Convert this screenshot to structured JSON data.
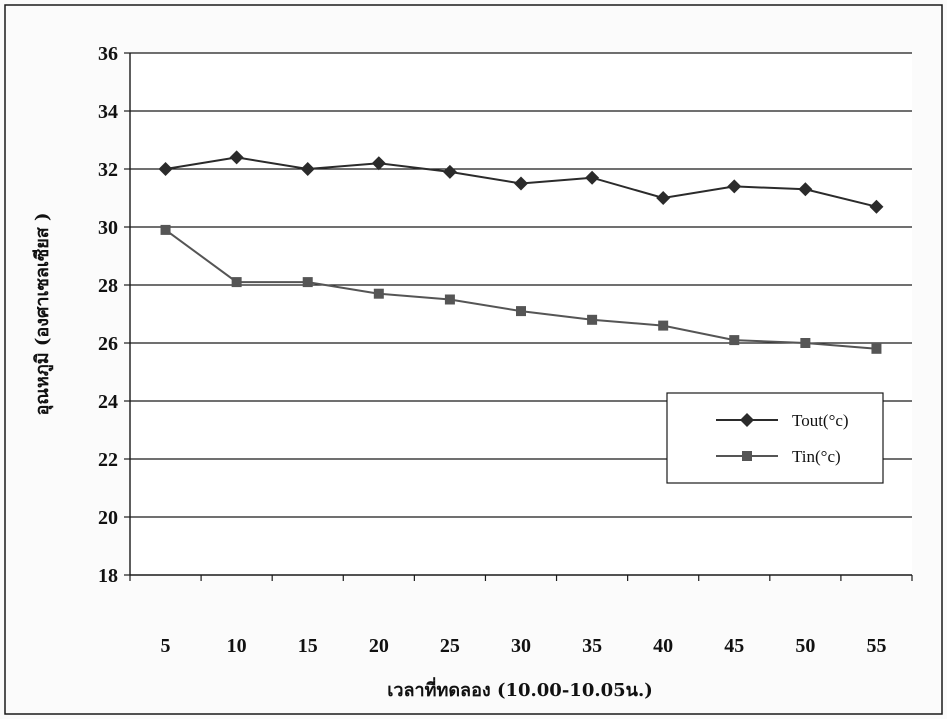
{
  "chart_data": {
    "type": "line",
    "title": "",
    "xlabel": "เวลาที่ทดลอง (10.00-10.05น.)",
    "ylabel": "อุณหภูมิ (องศาเซลเซียส )",
    "x": [
      5,
      10,
      15,
      20,
      25,
      30,
      35,
      40,
      45,
      50,
      55
    ],
    "x_tick_labels": [
      "5",
      "10",
      "15",
      "20",
      "25",
      "30",
      "35",
      "40",
      "45",
      "50",
      "55"
    ],
    "ylim": [
      18,
      36
    ],
    "y_ticks": [
      18,
      20,
      22,
      24,
      26,
      28,
      30,
      32,
      34,
      36
    ],
    "y_tick_labels": [
      "18",
      "20",
      "22",
      "24",
      "26",
      "28",
      "30",
      "32",
      "34",
      "36"
    ],
    "grid": "horizontal",
    "legend_position": "right",
    "series": [
      {
        "name": "Tout(°c)",
        "marker": "diamond",
        "color": "#2b2b2b",
        "values": [
          32.0,
          32.4,
          32.0,
          32.2,
          31.9,
          31.5,
          31.7,
          31.0,
          31.4,
          31.3,
          30.7
        ]
      },
      {
        "name": "Tin(°c)",
        "marker": "square",
        "color": "#555555",
        "values": [
          29.9,
          28.1,
          28.1,
          27.7,
          27.5,
          27.1,
          26.8,
          26.6,
          26.1,
          26.0,
          25.8
        ]
      }
    ]
  }
}
